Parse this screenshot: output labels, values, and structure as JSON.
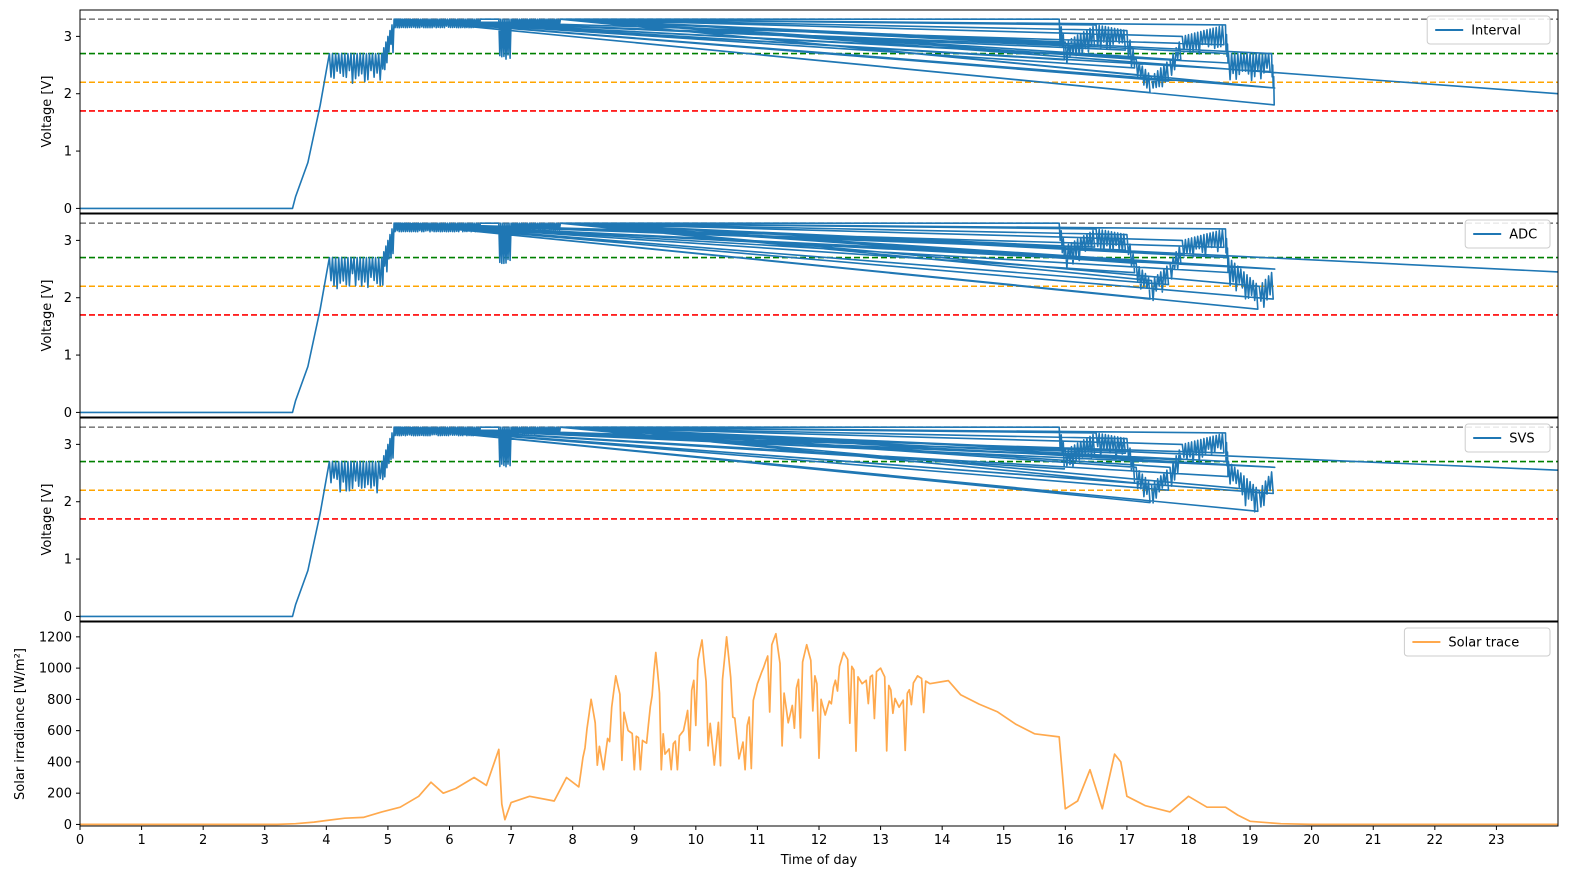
{
  "chart_data": [
    {
      "type": "line",
      "ylabel": "Voltage [V]",
      "xlim": [
        0,
        24
      ],
      "ylim": [
        -0.08,
        3.46
      ],
      "yticks": [
        0,
        1,
        2,
        3
      ],
      "thresholds": [
        {
          "value": 3.3,
          "color": "#808080"
        },
        {
          "value": 2.7,
          "color": "#008000"
        },
        {
          "value": 2.2,
          "color": "#ffa500"
        },
        {
          "value": 1.7,
          "color": "#ff0000"
        }
      ],
      "legend_position": "top-right",
      "series": [
        {
          "name": "Interval",
          "color": "#1f77b4",
          "end_voltage": 2.0,
          "points": [
            [
              0,
              0
            ],
            [
              3.45,
              0
            ],
            [
              3.5,
              0.2
            ],
            [
              3.7,
              0.8
            ],
            [
              3.9,
              1.8
            ],
            [
              4.0,
              2.4
            ],
            [
              4.05,
              2.7
            ],
            [
              4.9,
              2.7
            ],
            [
              5.0,
              3.0
            ],
            [
              5.1,
              3.3
            ],
            [
              15.9,
              3.3
            ],
            [
              16.0,
              2.9
            ],
            [
              16.5,
              3.2
            ],
            [
              17.0,
              3.1
            ],
            [
              17.15,
              2.6
            ],
            [
              17.4,
              2.3
            ],
            [
              17.7,
              2.6
            ],
            [
              17.9,
              3.0
            ],
            [
              18.6,
              3.2
            ],
            [
              18.65,
              2.7
            ],
            [
              19.35,
              2.7
            ],
            [
              19.4,
              2.1
            ],
            [
              24,
              2.0
            ]
          ]
        },
        {
          "name": "ADC",
          "color": "#1f77b4",
          "end_voltage": 2.45,
          "points": [
            [
              0,
              0
            ],
            [
              3.45,
              0
            ],
            [
              3.5,
              0.2
            ],
            [
              3.7,
              0.8
            ],
            [
              3.9,
              1.8
            ],
            [
              4.0,
              2.4
            ],
            [
              4.05,
              2.7
            ],
            [
              4.9,
              2.7
            ],
            [
              5.0,
              3.0
            ],
            [
              5.1,
              3.3
            ],
            [
              15.9,
              3.3
            ],
            [
              16.0,
              2.9
            ],
            [
              16.5,
              3.2
            ],
            [
              17.0,
              3.1
            ],
            [
              17.15,
              2.6
            ],
            [
              17.4,
              2.3
            ],
            [
              17.7,
              2.6
            ],
            [
              17.9,
              3.0
            ],
            [
              18.6,
              3.2
            ],
            [
              18.65,
              2.7
            ],
            [
              19.15,
              2.2
            ],
            [
              19.4,
              2.5
            ],
            [
              24,
              2.45
            ]
          ]
        },
        {
          "name": "SVS",
          "color": "#1f77b4",
          "end_voltage": 2.55,
          "points": [
            [
              0,
              0
            ],
            [
              3.45,
              0
            ],
            [
              3.5,
              0.2
            ],
            [
              3.7,
              0.8
            ],
            [
              3.9,
              1.8
            ],
            [
              4.0,
              2.4
            ],
            [
              4.05,
              2.7
            ],
            [
              4.9,
              2.7
            ],
            [
              5.0,
              3.0
            ],
            [
              5.1,
              3.3
            ],
            [
              15.9,
              3.3
            ],
            [
              16.0,
              2.9
            ],
            [
              16.5,
              3.2
            ],
            [
              17.0,
              3.1
            ],
            [
              17.15,
              2.6
            ],
            [
              17.4,
              2.3
            ],
            [
              17.7,
              2.6
            ],
            [
              17.9,
              3.0
            ],
            [
              18.6,
              3.2
            ],
            [
              18.65,
              2.7
            ],
            [
              19.15,
              2.2
            ],
            [
              19.4,
              2.6
            ],
            [
              24,
              2.55
            ]
          ]
        }
      ]
    },
    {
      "type": "line",
      "ylabel": "Solar irradiance [W/m²]",
      "xlabel": "Time of day",
      "xlim": [
        0,
        24
      ],
      "ylim": [
        -10,
        1295
      ],
      "yticks": [
        0,
        200,
        400,
        600,
        800,
        1000,
        1200
      ],
      "xticks": [
        0,
        1,
        2,
        3,
        4,
        5,
        6,
        7,
        8,
        9,
        10,
        11,
        12,
        13,
        14,
        15,
        16,
        17,
        18,
        19,
        20,
        21,
        22,
        23
      ],
      "legend_position": "top-right",
      "series": [
        {
          "name": "Solar trace",
          "color": "#ffa94d",
          "points": [
            [
              0,
              0
            ],
            [
              3.2,
              0
            ],
            [
              3.5,
              5
            ],
            [
              3.8,
              15
            ],
            [
              4.0,
              25
            ],
            [
              4.3,
              40
            ],
            [
              4.6,
              45
            ],
            [
              4.9,
              80
            ],
            [
              5.2,
              110
            ],
            [
              5.5,
              180
            ],
            [
              5.7,
              270
            ],
            [
              5.9,
              200
            ],
            [
              6.1,
              230
            ],
            [
              6.4,
              300
            ],
            [
              6.6,
              250
            ],
            [
              6.8,
              480
            ],
            [
              6.85,
              130
            ],
            [
              6.9,
              30
            ],
            [
              7.0,
              140
            ],
            [
              7.3,
              180
            ],
            [
              7.7,
              150
            ],
            [
              7.9,
              300
            ],
            [
              8.1,
              240
            ],
            [
              8.3,
              800
            ],
            [
              8.5,
              350
            ],
            [
              8.7,
              950
            ],
            [
              8.9,
              600
            ],
            [
              9.2,
              520
            ],
            [
              9.35,
              1100
            ],
            [
              9.5,
              450
            ],
            [
              9.8,
              600
            ],
            [
              10.1,
              1180
            ],
            [
              10.3,
              380
            ],
            [
              10.5,
              1200
            ],
            [
              10.7,
              420
            ],
            [
              11.0,
              900
            ],
            [
              11.3,
              1220
            ],
            [
              11.5,
              650
            ],
            [
              11.8,
              1150
            ],
            [
              12.1,
              700
            ],
            [
              12.4,
              1100
            ],
            [
              12.7,
              900
            ],
            [
              13.0,
              1000
            ],
            [
              13.3,
              750
            ],
            [
              13.6,
              950
            ],
            [
              13.8,
              900
            ],
            [
              14.1,
              920
            ],
            [
              14.3,
              830
            ],
            [
              14.6,
              770
            ],
            [
              14.9,
              720
            ],
            [
              15.2,
              640
            ],
            [
              15.5,
              580
            ],
            [
              15.9,
              560
            ],
            [
              16.0,
              100
            ],
            [
              16.2,
              150
            ],
            [
              16.4,
              350
            ],
            [
              16.6,
              100
            ],
            [
              16.8,
              450
            ],
            [
              16.9,
              400
            ],
            [
              17.0,
              180
            ],
            [
              17.3,
              120
            ],
            [
              17.7,
              80
            ],
            [
              18.0,
              180
            ],
            [
              18.3,
              110
            ],
            [
              18.6,
              110
            ],
            [
              18.8,
              60
            ],
            [
              19.0,
              20
            ],
            [
              19.5,
              5
            ],
            [
              20,
              0
            ],
            [
              24,
              0
            ]
          ]
        }
      ]
    }
  ],
  "figure": {
    "ticks_hours": [
      "0",
      "1",
      "2",
      "3",
      "4",
      "5",
      "6",
      "7",
      "8",
      "9",
      "10",
      "11",
      "12",
      "13",
      "14",
      "15",
      "16",
      "17",
      "18",
      "19",
      "20",
      "21",
      "22",
      "23"
    ]
  }
}
